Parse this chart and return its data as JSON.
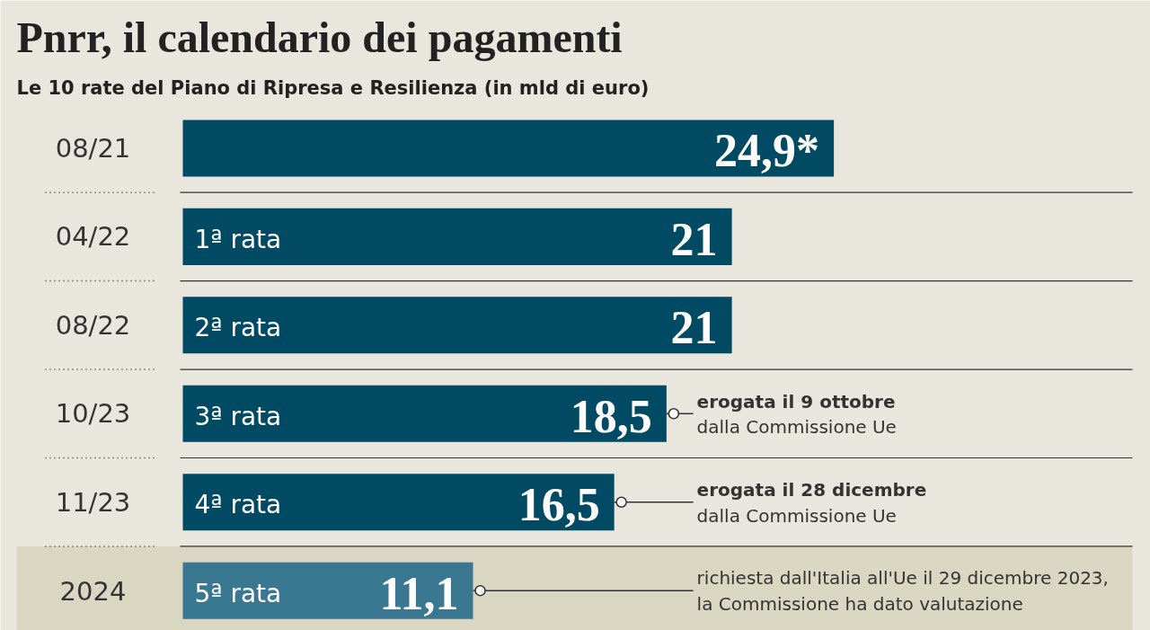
{
  "chart_data": {
    "type": "bar",
    "orientation": "horizontal",
    "title": "Pnrr, il calendario dei pagamenti",
    "subtitle": "Le 10 rate del Piano di Ripresa e Resilienza (in mld di euro)",
    "categories": [
      "08/21",
      "04/22",
      "08/22",
      "10/23",
      "11/23",
      "2024"
    ],
    "values": [
      24.9,
      21,
      21,
      18.5,
      16.5,
      11.1
    ],
    "colors": [
      "#004a63",
      "#004a63",
      "#004a63",
      "#004a63",
      "#004a63",
      "#3a7790"
    ],
    "value_labels": [
      "24,9*",
      "21",
      "21",
      "18,5",
      "16,5",
      "11,1"
    ],
    "bands": [
      {
        "axis": "y",
        "from": "2024",
        "to": "2024",
        "color": "#d9d6c1"
      }
    ],
    "annotations": [
      {
        "text": "1ª rata",
        "x": 0,
        "y": "04/22"
      },
      {
        "text": "2ª rata",
        "x": 0,
        "y": "08/22"
      },
      {
        "text": "3ª rata",
        "x": 0,
        "y": "10/23"
      },
      {
        "text": "4ª rata",
        "x": 0,
        "y": "11/23"
      },
      {
        "text": "5ª rata",
        "x": 0,
        "y": "2024"
      },
      {
        "text": "erogata il 9 ottobre\ndalla Commissione Ue",
        "x": 18.5,
        "y": "10/23"
      },
      {
        "text": "erogata il 28 dicembre\ndalla Commissione Ue",
        "x": 16.5,
        "y": "11/23"
      },
      {
        "text": "richiesta dall'Italia all'Ue il 29 dicembre 2023,\nla Commissione ha dato valutazione",
        "x": 11.1,
        "y": "2024"
      }
    ],
    "grid": false
  }
}
